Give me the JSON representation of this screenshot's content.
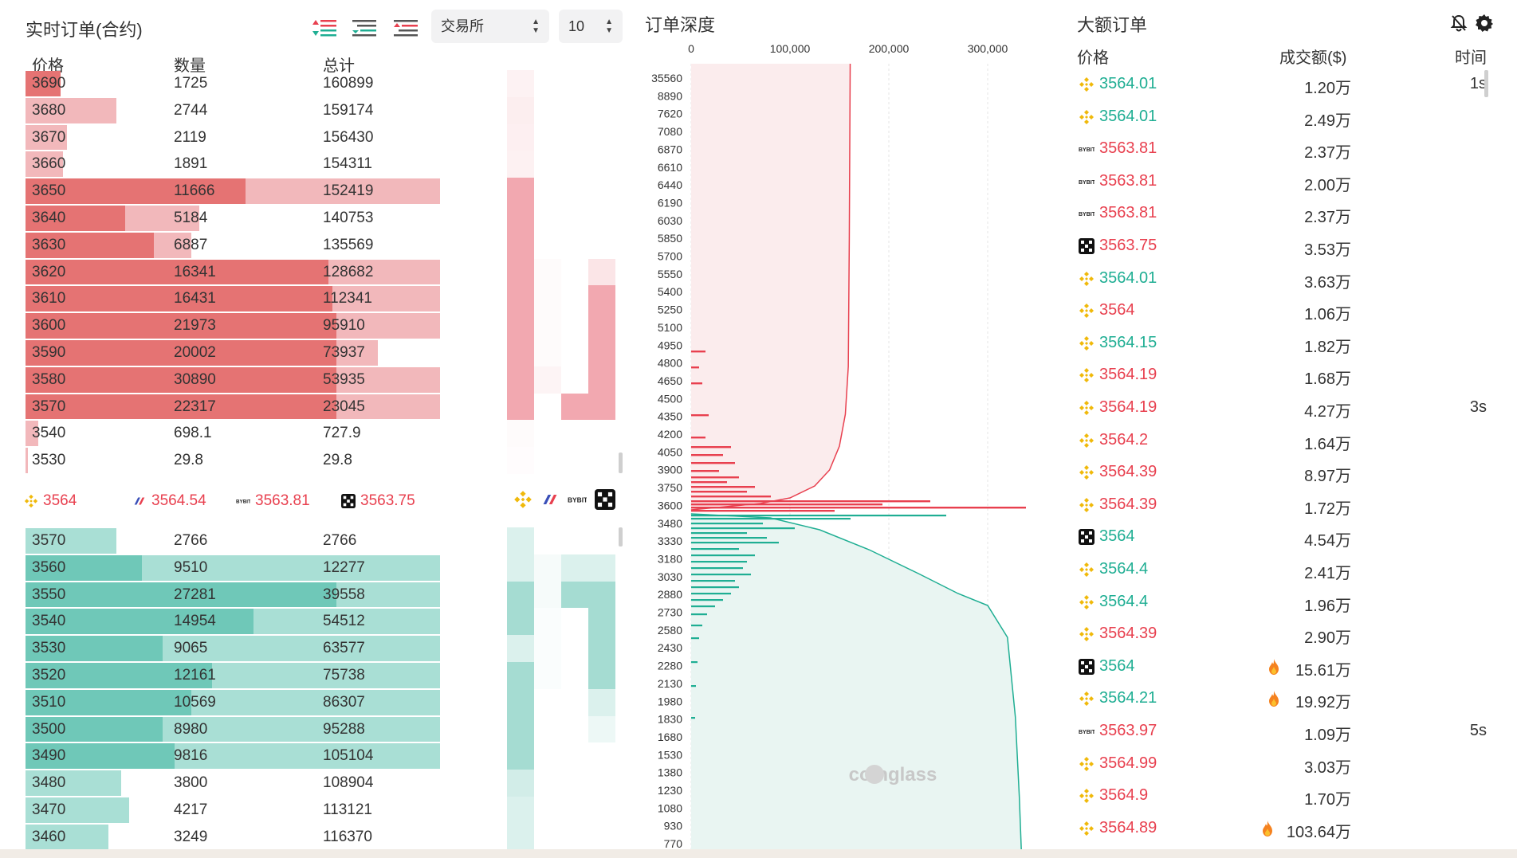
{
  "orderbook": {
    "title": "实时订单(合约)",
    "exchange_select": "交易所",
    "depth_select": "10",
    "headers": {
      "price": "价格",
      "qty": "数量",
      "total": "总计"
    },
    "colors": {
      "ask_qty": "#e57373",
      "ask_total": "#f2b8bb",
      "bid_qty": "#6fc8b8",
      "bid_total": "#a9dfd5",
      "ask_text": "#e8404f",
      "bid_text": "#1fae93"
    },
    "asks": [
      {
        "price": "3690",
        "qty": "1725",
        "total": "160899",
        "qty_ratio": 0.085,
        "total_ratio": 0.085
      },
      {
        "price": "3680",
        "qty": "2744",
        "total": "159174",
        "qty_ratio": 0.0,
        "total_ratio": 0.22
      },
      {
        "price": "3670",
        "qty": "2119",
        "total": "156430",
        "qty_ratio": 0.0,
        "total_ratio": 0.1
      },
      {
        "price": "3660",
        "qty": "1891",
        "total": "154311",
        "qty_ratio": 0.0,
        "total_ratio": 0.09
      },
      {
        "price": "3650",
        "qty": "11666",
        "total": "152419",
        "qty_ratio": 0.53,
        "total_ratio": 1.0
      },
      {
        "price": "3640",
        "qty": "5184",
        "total": "140753",
        "qty_ratio": 0.24,
        "total_ratio": 0.42
      },
      {
        "price": "3630",
        "qty": "6887",
        "total": "135569",
        "qty_ratio": 0.31,
        "total_ratio": 0.4
      },
      {
        "price": "3620",
        "qty": "16341",
        "total": "128682",
        "qty_ratio": 0.73,
        "total_ratio": 1.0
      },
      {
        "price": "3610",
        "qty": "16431",
        "total": "112341",
        "qty_ratio": 0.74,
        "total_ratio": 1.0
      },
      {
        "price": "3600",
        "qty": "21973",
        "total": "95910",
        "qty_ratio": 0.75,
        "total_ratio": 1.0
      },
      {
        "price": "3590",
        "qty": "20002",
        "total": "73937",
        "qty_ratio": 0.75,
        "total_ratio": 0.85
      },
      {
        "price": "3580",
        "qty": "30890",
        "total": "53935",
        "qty_ratio": 0.75,
        "total_ratio": 1.0
      },
      {
        "price": "3570",
        "qty": "22317",
        "total": "23045",
        "qty_ratio": 0.75,
        "total_ratio": 1.0
      },
      {
        "price": "3540",
        "qty": "698.1",
        "total": "727.9",
        "qty_ratio": 0.0,
        "total_ratio": 0.03
      },
      {
        "price": "3530",
        "qty": "29.8",
        "total": "29.8",
        "qty_ratio": 0.0,
        "total_ratio": 0.005
      }
    ],
    "bids": [
      {
        "price": "3570",
        "qty": "2766",
        "total": "2766",
        "qty_ratio": 0.0,
        "total_ratio": 0.22
      },
      {
        "price": "3560",
        "qty": "9510",
        "total": "12277",
        "qty_ratio": 0.28,
        "total_ratio": 1.0
      },
      {
        "price": "3550",
        "qty": "27281",
        "total": "39558",
        "qty_ratio": 0.75,
        "total_ratio": 1.0
      },
      {
        "price": "3540",
        "qty": "14954",
        "total": "54512",
        "qty_ratio": 0.55,
        "total_ratio": 1.0
      },
      {
        "price": "3530",
        "qty": "9065",
        "total": "63577",
        "qty_ratio": 0.33,
        "total_ratio": 1.0
      },
      {
        "price": "3520",
        "qty": "12161",
        "total": "75738",
        "qty_ratio": 0.45,
        "total_ratio": 1.0
      },
      {
        "price": "3510",
        "qty": "10569",
        "total": "86307",
        "qty_ratio": 0.4,
        "total_ratio": 1.0
      },
      {
        "price": "3500",
        "qty": "8980",
        "total": "95288",
        "qty_ratio": 0.33,
        "total_ratio": 1.0
      },
      {
        "price": "3490",
        "qty": "9816",
        "total": "105104",
        "qty_ratio": 0.36,
        "total_ratio": 1.0
      },
      {
        "price": "3480",
        "qty": "3800",
        "total": "108904",
        "qty_ratio": 0.0,
        "total_ratio": 0.23
      },
      {
        "price": "3470",
        "qty": "4217",
        "total": "113121",
        "qty_ratio": 0.0,
        "total_ratio": 0.25
      },
      {
        "price": "3460",
        "qty": "3249",
        "total": "116370",
        "qty_ratio": 0.0,
        "total_ratio": 0.2
      }
    ],
    "mid_prices": [
      {
        "exchange": "binance-icon",
        "price": "3564"
      },
      {
        "exchange": "bitmex-icon",
        "price": "3564.54"
      },
      {
        "exchange": "bybit-icon",
        "price": "3563.81"
      },
      {
        "exchange": "okx-icon",
        "price": "3563.75"
      }
    ],
    "heat_asks": [
      [
        0.15,
        0,
        0,
        0
      ],
      [
        0.2,
        0,
        0,
        0
      ],
      [
        0.18,
        0,
        0,
        0
      ],
      [
        0.16,
        0,
        0,
        0
      ],
      [
        1,
        0,
        0,
        0
      ],
      [
        1,
        0,
        0,
        0
      ],
      [
        1,
        0,
        0,
        0
      ],
      [
        1,
        0.05,
        0,
        0.3
      ],
      [
        1,
        0.05,
        0,
        1
      ],
      [
        1,
        0.05,
        0,
        1
      ],
      [
        1,
        0.05,
        0,
        1
      ],
      [
        1,
        0.12,
        0,
        1
      ],
      [
        1,
        0,
        1,
        1
      ],
      [
        0.05,
        0,
        0,
        0
      ],
      [
        0.03,
        0,
        0,
        0
      ]
    ],
    "heat_bids": [
      [
        0.4,
        0,
        0,
        0
      ],
      [
        0.4,
        0.1,
        0.4,
        0.4
      ],
      [
        1,
        0.1,
        1,
        1
      ],
      [
        1,
        0.05,
        0,
        1
      ],
      [
        0.4,
        0.05,
        0,
        1
      ],
      [
        1,
        0.05,
        0,
        1
      ],
      [
        1,
        0,
        0,
        0.4
      ],
      [
        1,
        0,
        0,
        0.2
      ],
      [
        1,
        0,
        0,
        0
      ],
      [
        0.5,
        0,
        0,
        0
      ],
      [
        0.4,
        0,
        0,
        0
      ],
      [
        0.4,
        0,
        0,
        0
      ]
    ]
  },
  "depth": {
    "title": "订单深度",
    "x_ticks": [
      "0",
      "100,000",
      "200,000",
      "300,000"
    ],
    "y_labels": [
      "35560",
      "8890",
      "7620",
      "7080",
      "6870",
      "6610",
      "6440",
      "6190",
      "6030",
      "5850",
      "5700",
      "5550",
      "5400",
      "5250",
      "5100",
      "4950",
      "4800",
      "4650",
      "4500",
      "4350",
      "4200",
      "4050",
      "3900",
      "3750",
      "3600",
      "3480",
      "3330",
      "3180",
      "3030",
      "2880",
      "2730",
      "2580",
      "2430",
      "2280",
      "2130",
      "1980",
      "1830",
      "1680",
      "1530",
      "1380",
      "1230",
      "1080",
      "930",
      "770"
    ],
    "watermark": "coinglass",
    "colors": {
      "ask": "#e8404f",
      "ask_fill": "#fbeced",
      "bid": "#1fae93",
      "bid_fill": "#e9f5f2"
    }
  },
  "large_orders": {
    "title": "大额订单",
    "headers": {
      "price": "价格",
      "amount": "成交额($)",
      "time": "时间"
    },
    "rows": [
      {
        "ex": "binance-icon",
        "price": "3564.01",
        "side": "buy",
        "amount": "1.20万",
        "time": "1s",
        "fire": false
      },
      {
        "ex": "binance-icon",
        "price": "3564.01",
        "side": "buy",
        "amount": "2.49万",
        "time": "",
        "fire": false
      },
      {
        "ex": "bybit-icon",
        "price": "3563.81",
        "side": "sell",
        "amount": "2.37万",
        "time": "",
        "fire": false
      },
      {
        "ex": "bybit-icon",
        "price": "3563.81",
        "side": "sell",
        "amount": "2.00万",
        "time": "",
        "fire": false
      },
      {
        "ex": "bybit-icon",
        "price": "3563.81",
        "side": "sell",
        "amount": "2.37万",
        "time": "",
        "fire": false
      },
      {
        "ex": "okx-icon",
        "price": "3563.75",
        "side": "sell",
        "amount": "3.53万",
        "time": "",
        "fire": false
      },
      {
        "ex": "binance-icon",
        "price": "3564.01",
        "side": "buy",
        "amount": "3.63万",
        "time": "",
        "fire": false
      },
      {
        "ex": "binance-icon",
        "price": "3564",
        "side": "sell",
        "amount": "1.06万",
        "time": "",
        "fire": false
      },
      {
        "ex": "binance-icon",
        "price": "3564.15",
        "side": "buy",
        "amount": "1.82万",
        "time": "",
        "fire": false
      },
      {
        "ex": "binance-icon",
        "price": "3564.19",
        "side": "sell",
        "amount": "1.68万",
        "time": "",
        "fire": false
      },
      {
        "ex": "binance-icon",
        "price": "3564.19",
        "side": "sell",
        "amount": "4.27万",
        "time": "3s",
        "fire": false
      },
      {
        "ex": "binance-icon",
        "price": "3564.2",
        "side": "sell",
        "amount": "1.64万",
        "time": "",
        "fire": false
      },
      {
        "ex": "binance-icon",
        "price": "3564.39",
        "side": "sell",
        "amount": "8.97万",
        "time": "",
        "fire": false
      },
      {
        "ex": "binance-icon",
        "price": "3564.39",
        "side": "sell",
        "amount": "1.72万",
        "time": "",
        "fire": false
      },
      {
        "ex": "okx-icon",
        "price": "3564",
        "side": "buy",
        "amount": "4.54万",
        "time": "",
        "fire": false
      },
      {
        "ex": "binance-icon",
        "price": "3564.4",
        "side": "buy",
        "amount": "2.41万",
        "time": "",
        "fire": false
      },
      {
        "ex": "binance-icon",
        "price": "3564.4",
        "side": "buy",
        "amount": "1.96万",
        "time": "",
        "fire": false
      },
      {
        "ex": "binance-icon",
        "price": "3564.39",
        "side": "sell",
        "amount": "2.90万",
        "time": "",
        "fire": false
      },
      {
        "ex": "okx-icon",
        "price": "3564",
        "side": "buy",
        "amount": "15.61万",
        "time": "",
        "fire": true
      },
      {
        "ex": "binance-icon",
        "price": "3564.21",
        "side": "buy",
        "amount": "19.92万",
        "time": "",
        "fire": true
      },
      {
        "ex": "bybit-icon",
        "price": "3563.97",
        "side": "sell",
        "amount": "1.09万",
        "time": "5s",
        "fire": false
      },
      {
        "ex": "binance-icon",
        "price": "3564.99",
        "side": "sell",
        "amount": "3.03万",
        "time": "",
        "fire": false
      },
      {
        "ex": "binance-icon",
        "price": "3564.9",
        "side": "sell",
        "amount": "1.70万",
        "time": "",
        "fire": false
      },
      {
        "ex": "binance-icon",
        "price": "3564.89",
        "side": "sell",
        "amount": "103.64万",
        "time": "",
        "fire": true
      }
    ]
  }
}
